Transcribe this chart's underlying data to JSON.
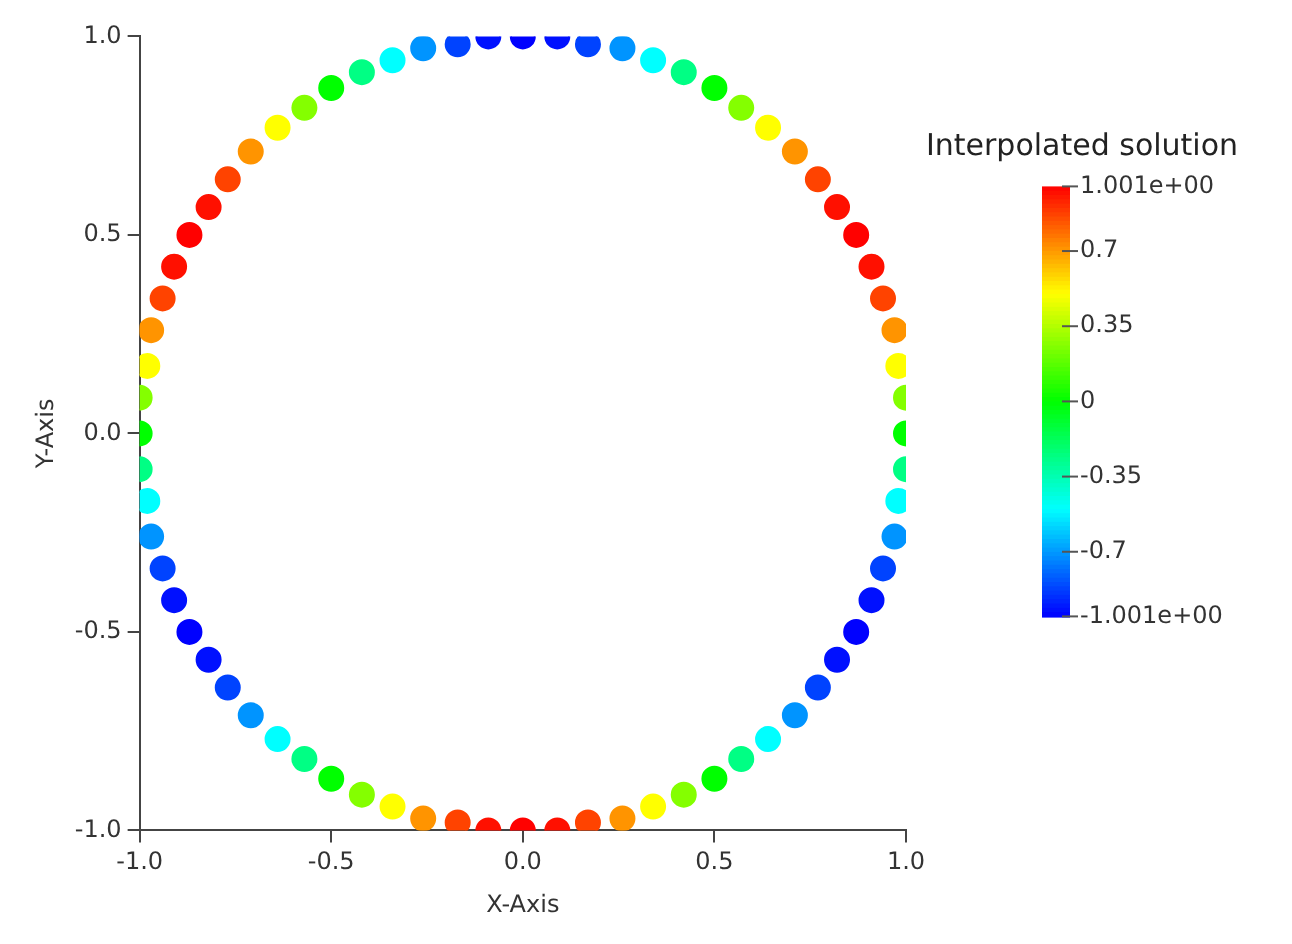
{
  "chart_data": {
    "type": "scatter",
    "xlabel": "X-Axis",
    "ylabel": "Y-Axis",
    "clabel": "Interpolated solution",
    "xlim": [
      -1,
      1
    ],
    "ylim": [
      -1,
      1
    ],
    "xticks": [
      {
        "value": -1,
        "label": "-1.0"
      },
      {
        "value": -0.5,
        "label": "-0.5"
      },
      {
        "value": 0,
        "label": "0.0"
      },
      {
        "value": 0.5,
        "label": "0.5"
      },
      {
        "value": 1,
        "label": "1.0"
      }
    ],
    "yticks": [
      {
        "value": -1,
        "label": "-1.0"
      },
      {
        "value": -0.5,
        "label": "-0.5"
      },
      {
        "value": 0,
        "label": "0.0"
      },
      {
        "value": 0.5,
        "label": "0.5"
      },
      {
        "value": 1,
        "label": "1.0"
      }
    ],
    "clim": [
      -1.001,
      1.001
    ],
    "cticks": [
      {
        "value": -1.001,
        "label": "-1.001e+00"
      },
      -0.7,
      -0.35,
      0,
      0.35,
      0.7,
      {
        "value": 1.001,
        "label": "1.001e+00"
      }
    ],
    "marker": "circle",
    "grid": false,
    "legend": false,
    "x": [
      1,
      1,
      0.98,
      0.97,
      0.94,
      0.91,
      0.87,
      0.82,
      0.77,
      0.71,
      0.64,
      0.57,
      0.5,
      0.42,
      0.34,
      0.26,
      0.17,
      0.09,
      0,
      -0.09,
      -0.17,
      -0.26,
      -0.34,
      -0.42,
      -0.5,
      -0.57,
      -0.64,
      -0.71,
      -0.77,
      -0.82,
      -0.87,
      -0.91,
      -0.94,
      -0.97,
      -0.98,
      -1,
      -1,
      -1,
      -0.98,
      -0.97,
      -0.94,
      -0.91,
      -0.87,
      -0.82,
      -0.77,
      -0.71,
      -0.64,
      -0.57,
      -0.5,
      -0.42,
      -0.34,
      -0.26,
      -0.17,
      -0.09,
      0,
      0.09,
      0.17,
      0.26,
      0.34,
      0.42,
      0.5,
      0.57,
      0.64,
      0.71,
      0.77,
      0.82,
      0.87,
      0.91,
      0.94,
      0.97,
      0.98,
      1
    ],
    "values": [
      0,
      0.09,
      0.17,
      0.26,
      0.34,
      0.42,
      0.5,
      0.57,
      0.64,
      0.71,
      0.77,
      0.82,
      0.87,
      0.91,
      0.94,
      0.97,
      0.98,
      1,
      1,
      1,
      0.98,
      0.97,
      0.94,
      0.91,
      0.87,
      0.82,
      0.77,
      0.71,
      0.64,
      0.57,
      0.5,
      0.42,
      0.34,
      0.26,
      0.17,
      0.09,
      0,
      -0.09,
      -0.17,
      -0.26,
      -0.34,
      -0.42,
      -0.5,
      -0.57,
      -0.64,
      -0.71,
      -0.77,
      -0.82,
      -0.87,
      -0.91,
      -0.94,
      -0.97,
      -0.98,
      -1,
      -1,
      -1,
      -0.98,
      -0.97,
      -0.94,
      -0.91,
      -0.87,
      -0.82,
      -0.77,
      -0.71,
      -0.64,
      -0.57,
      -0.5,
      -0.42,
      -0.34,
      -0.26,
      -0.17,
      -0.09
    ],
    "cvalues": [
      0,
      0.26,
      0.5,
      0.71,
      0.87,
      0.97,
      1,
      0.97,
      0.87,
      0.71,
      0.5,
      0.26,
      0,
      -0.26,
      -0.5,
      -0.71,
      -0.87,
      -0.97,
      -1,
      -0.97,
      -0.87,
      -0.71,
      -0.5,
      -0.26,
      0,
      0.26,
      0.5,
      0.71,
      0.87,
      0.97,
      1,
      0.97,
      0.87,
      0.71,
      0.5,
      0.26,
      0,
      -0.26,
      -0.5,
      -0.71,
      -0.87,
      -0.97,
      -1,
      -0.97,
      -0.87,
      -0.71,
      -0.5,
      -0.26,
      0,
      0.26,
      0.5,
      0.71,
      0.87,
      0.97,
      1,
      0.97,
      0.87,
      0.71,
      0.5,
      0.26,
      0,
      -0.26,
      -0.5,
      -0.71,
      -0.87,
      -0.97,
      -1,
      -0.97,
      -0.87,
      -0.71,
      -0.5,
      -0.26
    ]
  }
}
